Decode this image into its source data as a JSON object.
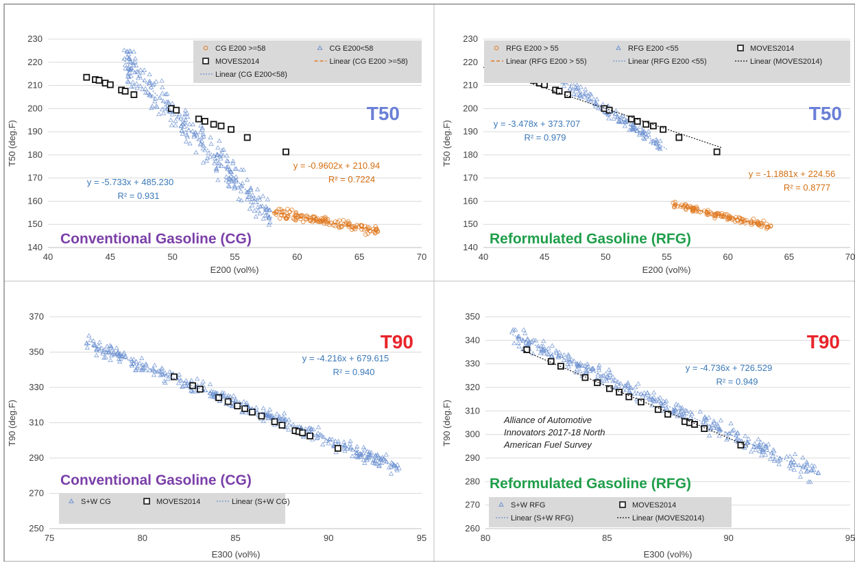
{
  "colors": {
    "blue": "#6a8fd0",
    "orange": "#e07b24",
    "black": "#111111",
    "t50": "#6a7fd6",
    "t90": "#e8242a",
    "cg": "#7a3fa8",
    "rfg": "#1f9e4a",
    "eq_blue": "#3a78b7",
    "eq_orange": "#d46d10"
  },
  "chart_data": [
    {
      "type": "scatter",
      "badge": "T50",
      "fuel": "Conventional Gasoline (CG)",
      "xlabel": "E200 (vol%)",
      "ylabel": "T50 (deg.F)",
      "xlim": [
        40,
        70
      ],
      "ylim": [
        140,
        230
      ],
      "xticks": [
        "40",
        "45",
        "50",
        "55",
        "60",
        "65",
        "70"
      ],
      "yticks": [
        "140",
        "150",
        "160",
        "170",
        "180",
        "190",
        "200",
        "210",
        "220",
        "230"
      ],
      "legend": [
        "CG E200 >=58",
        "CG E200<58",
        "MOVES2014",
        "Linear (CG E200 >=58)",
        "Linear (CG E200<58)"
      ],
      "equations": [
        {
          "text": "y = -5.733x + 485.230",
          "r2": "R² = 0.931",
          "series": "blue"
        },
        {
          "text": "y = -0.9602x + 210.94",
          "r2": "R² = 0.7224",
          "series": "orange"
        }
      ],
      "series": [
        {
          "kind": "triangle",
          "color": "blue",
          "x_range": [
            46,
            58
          ],
          "slope": -5.733,
          "intercept": 485.23,
          "n": 260,
          "spread": 6
        },
        {
          "kind": "circle",
          "color": "orange",
          "x_range": [
            58,
            66.5
          ],
          "slope": -0.9602,
          "intercept": 210.94,
          "n": 140,
          "spread": 1.8
        },
        {
          "kind": "square",
          "color": "black",
          "points": [
            [
              43.1,
              213.5
            ],
            [
              43.8,
              212.5
            ],
            [
              44.1,
              212.2
            ],
            [
              44.6,
              211
            ],
            [
              45,
              210.3
            ],
            [
              45.9,
              208
            ],
            [
              46.2,
              207.5
            ],
            [
              46.9,
              206
            ],
            [
              49.9,
              200
            ],
            [
              50.3,
              199.3
            ],
            [
              52.1,
              195.5
            ],
            [
              52.6,
              194.5
            ],
            [
              53.3,
              193.2
            ],
            [
              53.9,
              192.5
            ],
            [
              54.7,
              191
            ],
            [
              56,
              187.5
            ],
            [
              59.1,
              181.3
            ]
          ]
        }
      ],
      "trendlines": [
        {
          "color": "blue",
          "style": "dotted",
          "x": [
            46,
            58
          ],
          "slope": -5.733,
          "intercept": 485.23
        },
        {
          "color": "orange",
          "style": "dashed",
          "x": [
            58,
            66.5
          ],
          "slope": -0.9602,
          "intercept": 210.94
        }
      ]
    },
    {
      "type": "scatter",
      "badge": "T50",
      "fuel": "Reformulated Gasoline (RFG)",
      "xlabel": "E200 (vol%)",
      "ylabel": "T50 (deg.F)",
      "xlim": [
        40,
        70
      ],
      "ylim": [
        140,
        230
      ],
      "xticks": [
        "40",
        "45",
        "50",
        "55",
        "60",
        "65",
        "70"
      ],
      "yticks": [
        "140",
        "150",
        "160",
        "170",
        "180",
        "190",
        "200",
        "210",
        "220",
        "230"
      ],
      "legend": [
        "RFG E200 > 55",
        "RFG E200 <55",
        "MOVES2014",
        "Linear (RFG E200 > 55)",
        "Linear (RFG E200 <55)",
        "Linear (MOVES2014)"
      ],
      "equations": [
        {
          "text": "y = -3.478x + 373.707",
          "r2": "R² = 0.979",
          "series": "blue"
        },
        {
          "text": "y = -1.1881x + 224.56",
          "r2": "R² = 0.8777",
          "series": "orange"
        }
      ],
      "series": [
        {
          "kind": "triangle",
          "color": "blue",
          "x_range": [
            43.5,
            54.5
          ],
          "slope": -3.478,
          "intercept": 373.707,
          "n": 170,
          "spread": 2
        },
        {
          "kind": "circle",
          "color": "orange",
          "x_range": [
            55.5,
            63.5
          ],
          "slope": -1.1881,
          "intercept": 224.56,
          "n": 130,
          "spread": 1.3
        },
        {
          "kind": "square",
          "color": "black",
          "points": [
            [
              43.1,
              213.5
            ],
            [
              43.8,
              212.5
            ],
            [
              44.1,
              212.2
            ],
            [
              44.6,
              211
            ],
            [
              45,
              210.3
            ],
            [
              45.9,
              208
            ],
            [
              46.2,
              207.5
            ],
            [
              46.9,
              206
            ],
            [
              49.9,
              200
            ],
            [
              50.3,
              199.3
            ],
            [
              52.1,
              195.5
            ],
            [
              52.6,
              194.5
            ],
            [
              53.3,
              193.2
            ],
            [
              53.9,
              192.5
            ],
            [
              54.7,
              191
            ],
            [
              56,
              187.5
            ],
            [
              59.1,
              181.3
            ]
          ]
        }
      ],
      "trendlines": [
        {
          "color": "blue",
          "style": "dotted",
          "x": [
            43.5,
            55
          ],
          "slope": -3.478,
          "intercept": 373.707
        },
        {
          "color": "orange",
          "style": "dashed",
          "x": [
            55.5,
            63.5
          ],
          "slope": -1.1881,
          "intercept": 224.56
        },
        {
          "color": "black",
          "style": "dotted",
          "x": [
            40,
            59.5
          ],
          "slope": -1.78,
          "intercept": 289
        }
      ]
    },
    {
      "type": "scatter",
      "badge": "T90",
      "fuel": "Conventional Gasoline (CG)",
      "xlabel": "E300 (vol%)",
      "ylabel": "T90 (deg.F)",
      "xlim": [
        75,
        95
      ],
      "ylim": [
        250,
        370
      ],
      "xticks": [
        "75",
        "80",
        "85",
        "90",
        "95"
      ],
      "yticks": [
        "250",
        "270",
        "290",
        "310",
        "330",
        "350",
        "370"
      ],
      "legend": [
        "S+W CG",
        "MOVES2014",
        "Linear (S+W CG)"
      ],
      "equations": [
        {
          "text": "y = -4.216x + 679.615",
          "r2": "R² = 0.940",
          "series": "blue"
        }
      ],
      "series": [
        {
          "kind": "triangle",
          "color": "blue",
          "x_range": [
            77,
            93.8
          ],
          "slope": -4.216,
          "intercept": 679.615,
          "n": 380,
          "spread": 3.5
        },
        {
          "kind": "square",
          "color": "black",
          "points": [
            [
              81.7,
              336
            ],
            [
              82.7,
              331
            ],
            [
              83.1,
              329
            ],
            [
              84.1,
              324.2
            ],
            [
              84.6,
              322
            ],
            [
              85.1,
              319.5
            ],
            [
              85.5,
              318
            ],
            [
              85.9,
              316
            ],
            [
              86.4,
              313.8
            ],
            [
              87.1,
              310.6
            ],
            [
              87.5,
              308.6
            ],
            [
              88.2,
              305.5
            ],
            [
              88.4,
              305
            ],
            [
              88.6,
              304.3
            ],
            [
              89,
              302.5
            ],
            [
              90.5,
              295.5
            ]
          ]
        }
      ],
      "trendlines": [
        {
          "color": "blue",
          "style": "dotted",
          "x": [
            77,
            93.8
          ],
          "slope": -4.216,
          "intercept": 679.615
        }
      ]
    },
    {
      "type": "scatter",
      "badge": "T90",
      "fuel": "Reformulated Gasoline (RFG)",
      "annotation": [
        "Alliance of Automotive",
        "Innovators 2017-18 North",
        "American Fuel Survey"
      ],
      "xlabel": "E300 (vol%)",
      "ylabel": "T90 (deg.F)",
      "xlim": [
        80,
        95
      ],
      "ylim": [
        260,
        350
      ],
      "xticks": [
        "80",
        "85",
        "90",
        "95"
      ],
      "yticks": [
        "260",
        "270",
        "280",
        "290",
        "300",
        "310",
        "320",
        "330",
        "340",
        "350"
      ],
      "legend": [
        "S+W RFG",
        "MOVES2014",
        "Linear (S+W RFG)",
        "Linear (MOVES2014)"
      ],
      "equations": [
        {
          "text": "y = -4.736x + 726.529",
          "r2": "R² = 0.949",
          "series": "blue"
        }
      ],
      "series": [
        {
          "kind": "triangle",
          "color": "blue",
          "x_range": [
            81,
            93.7
          ],
          "slope": -4.736,
          "intercept": 726.529,
          "n": 320,
          "spread": 3.2
        },
        {
          "kind": "square",
          "color": "black",
          "points": [
            [
              81.7,
              336
            ],
            [
              82.7,
              331
            ],
            [
              83.1,
              329
            ],
            [
              84.1,
              324.2
            ],
            [
              84.6,
              322
            ],
            [
              85.1,
              319.5
            ],
            [
              85.5,
              318
            ],
            [
              85.9,
              316
            ],
            [
              86.4,
              313.8
            ],
            [
              87.1,
              310.6
            ],
            [
              87.5,
              308.6
            ],
            [
              88.2,
              305.5
            ],
            [
              88.4,
              305
            ],
            [
              88.6,
              304.3
            ],
            [
              89,
              302.5
            ],
            [
              90.5,
              295.5
            ]
          ]
        }
      ],
      "trendlines": [
        {
          "color": "blue",
          "style": "dotted",
          "x": [
            81,
            93.7
          ],
          "slope": -4.736,
          "intercept": 726.529
        },
        {
          "color": "black",
          "style": "dotted",
          "x": [
            81.5,
            90.8
          ],
          "slope": -4.4,
          "intercept": 694.5
        }
      ]
    }
  ]
}
